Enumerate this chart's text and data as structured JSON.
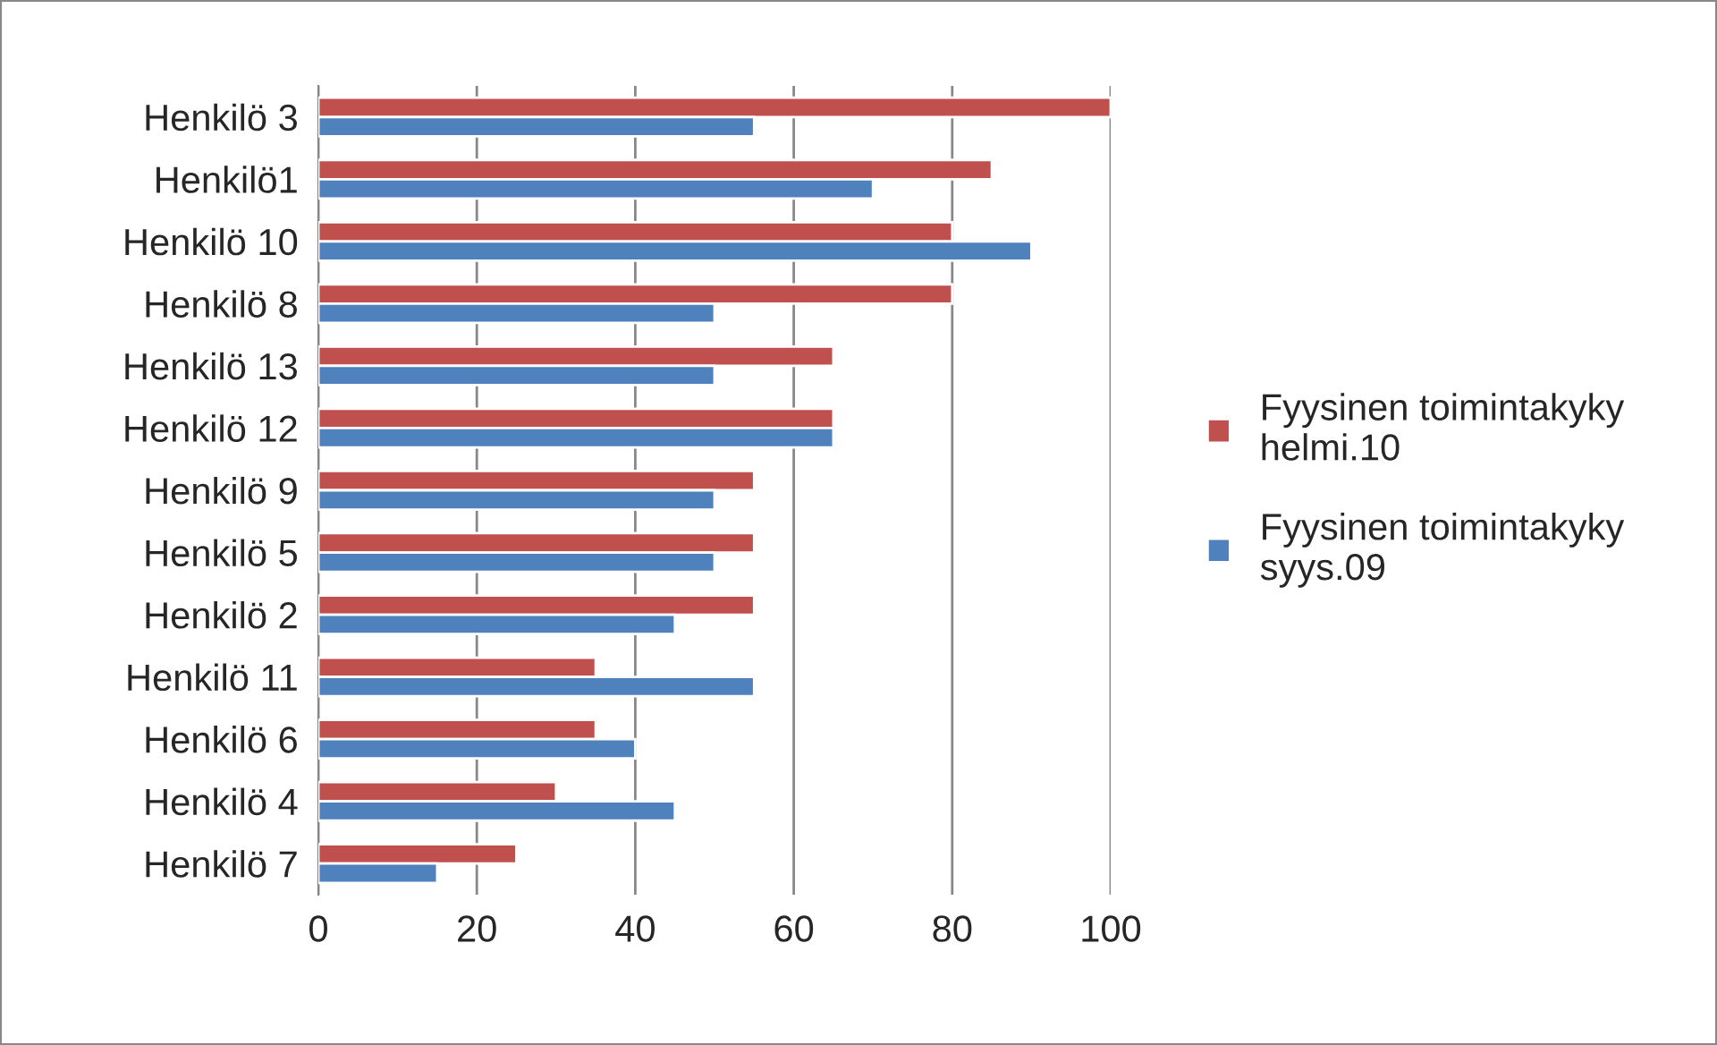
{
  "chart_data": {
    "type": "bar",
    "orientation": "horizontal",
    "categories": [
      "Henkilö 3",
      "Henkilö1",
      "Henkilö 10",
      "Henkilö 8",
      "Henkilö 13",
      "Henkilö 12",
      "Henkilö 9",
      "Henkilö 5",
      "Henkilö 2",
      "Henkilö 11",
      "Henkilö 6",
      "Henkilö 4",
      "Henkilö 7"
    ],
    "series": [
      {
        "name": "Fyysinen toimintakyky\nhelmi.10",
        "color": "#c0504d",
        "values": [
          100,
          85,
          80,
          80,
          65,
          65,
          55,
          55,
          55,
          35,
          35,
          30,
          25
        ]
      },
      {
        "name": "Fyysinen toimintakyky\nsyys.09",
        "color": "#4f81bd",
        "values": [
          55,
          70,
          90,
          50,
          50,
          65,
          50,
          50,
          45,
          55,
          40,
          45,
          15
        ]
      }
    ],
    "xlim": [
      0,
      100
    ],
    "xticks": [
      0,
      20,
      40,
      60,
      80,
      100
    ],
    "grid": "x",
    "legend": "right"
  }
}
